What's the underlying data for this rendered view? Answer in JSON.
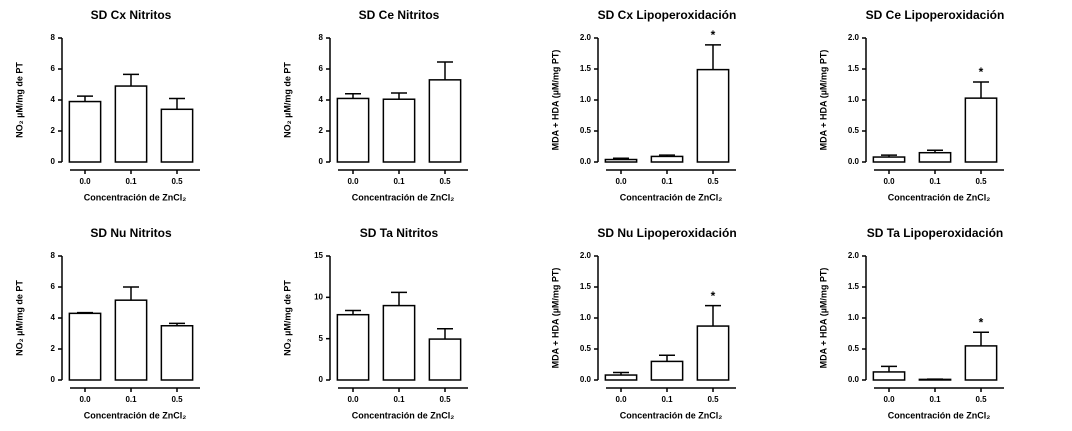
{
  "chart_data": [
    {
      "type": "bar",
      "title": "SD Cx Nitritos",
      "ylabel": "NO₂ µM/mg de PT",
      "xlabel": "Concentración de ZnCl₂",
      "categories": [
        "0.0",
        "0.1",
        "0.5"
      ],
      "values": [
        3.9,
        4.9,
        3.4
      ],
      "errors": [
        0.35,
        0.75,
        0.7
      ],
      "markers": [
        null,
        null,
        null
      ],
      "ylim": [
        0,
        8
      ],
      "yticks": [
        0,
        2,
        4,
        6,
        8
      ],
      "color": "#ffffff"
    },
    {
      "type": "bar",
      "title": "SD Ce Nitritos",
      "ylabel": "NO₂ µM/mg de PT",
      "xlabel": "Concentración de ZnCl₂",
      "categories": [
        "0.0",
        "0.1",
        "0.5"
      ],
      "values": [
        4.1,
        4.05,
        5.3
      ],
      "errors": [
        0.3,
        0.4,
        1.15
      ],
      "markers": [
        null,
        null,
        null
      ],
      "ylim": [
        0,
        8
      ],
      "yticks": [
        0,
        2,
        4,
        6,
        8
      ],
      "color": "#ffffff"
    },
    {
      "type": "bar",
      "title": "SD Cx Lipoperoxidación",
      "ylabel": "MDA + HDA (µM/mg PT)",
      "xlabel": "Concentración de ZnCl₂",
      "categories": [
        "0.0",
        "0.1",
        "0.5"
      ],
      "values": [
        0.04,
        0.09,
        1.49
      ],
      "errors": [
        0.02,
        0.02,
        0.4
      ],
      "markers": [
        null,
        null,
        "*"
      ],
      "ylim": [
        0,
        2
      ],
      "yticks": [
        {
          "value": 0,
          "label": "0.0"
        },
        0.5,
        {
          "value": 1,
          "label": "1.0"
        },
        1.5,
        {
          "value": 2,
          "label": "2.0"
        }
      ],
      "color": "#ffffff"
    },
    {
      "type": "bar",
      "title": "SD Ce Lipoperoxidación",
      "ylabel": "MDA + HDA (µM/mg PT)",
      "xlabel": "Concentración de ZnCl₂",
      "categories": [
        "0.0",
        "0.1",
        "0.5"
      ],
      "values": [
        0.08,
        0.15,
        1.03
      ],
      "errors": [
        0.03,
        0.04,
        0.26
      ],
      "markers": [
        null,
        null,
        "*"
      ],
      "ylim": [
        0,
        2
      ],
      "yticks": [
        {
          "value": 0,
          "label": "0.0"
        },
        0.5,
        {
          "value": 1,
          "label": "1.0"
        },
        1.5,
        {
          "value": 2,
          "label": "2.0"
        }
      ],
      "color": "#ffffff"
    },
    {
      "type": "bar",
      "title": "SD Nu Nitritos",
      "ylabel": "NO₂ µM/mg de PT",
      "xlabel": "Concentración de ZnCl₂",
      "categories": [
        "0.0",
        "0.1",
        "0.5"
      ],
      "values": [
        4.3,
        5.15,
        3.5
      ],
      "errors": [
        0.05,
        0.85,
        0.15
      ],
      "markers": [
        null,
        null,
        null
      ],
      "ylim": [
        0,
        8
      ],
      "yticks": [
        0,
        2,
        4,
        6,
        8
      ],
      "color": "#ffffff"
    },
    {
      "type": "bar",
      "title": "SD Ta Nitritos",
      "ylabel": "NO₂ µM/mg de PT",
      "xlabel": "Concentración de ZnCl₂",
      "categories": [
        "0.0",
        "0.1",
        "0.5"
      ],
      "values": [
        7.9,
        9.0,
        4.95
      ],
      "errors": [
        0.5,
        1.6,
        1.25
      ],
      "markers": [
        null,
        null,
        null
      ],
      "ylim": [
        0,
        15
      ],
      "yticks": [
        0,
        5,
        10,
        15
      ],
      "color": "#ffffff"
    },
    {
      "type": "bar",
      "title": "SD Nu Lipoperoxidación",
      "ylabel": "MDA + HDA (µM/mg PT)",
      "xlabel": "Concentración de ZnCl₂",
      "categories": [
        "0.0",
        "0.1",
        "0.5"
      ],
      "values": [
        0.08,
        0.3,
        0.87
      ],
      "errors": [
        0.04,
        0.1,
        0.33
      ],
      "markers": [
        null,
        null,
        "*"
      ],
      "ylim": [
        0,
        2
      ],
      "yticks": [
        {
          "value": 0,
          "label": "0.0"
        },
        0.5,
        {
          "value": 1,
          "label": "1.0"
        },
        1.5,
        {
          "value": 2,
          "label": "2.0"
        }
      ],
      "color": "#ffffff"
    },
    {
      "type": "bar",
      "title": "SD Ta Lipoperoxidación",
      "ylabel": "MDA + HDA (µM/mg PT)",
      "xlabel": "Concentración de ZnCl₂",
      "categories": [
        "0.0",
        "0.1",
        "0.5"
      ],
      "values": [
        0.13,
        0.01,
        0.55
      ],
      "errors": [
        0.09,
        0.005,
        0.22
      ],
      "markers": [
        null,
        null,
        "*"
      ],
      "ylim": [
        0,
        2
      ],
      "yticks": [
        {
          "value": 0,
          "label": "0.0"
        },
        0.5,
        {
          "value": 1,
          "label": "1.0"
        },
        1.5,
        {
          "value": 2,
          "label": "2.0"
        }
      ],
      "color": "#ffffff"
    }
  ]
}
